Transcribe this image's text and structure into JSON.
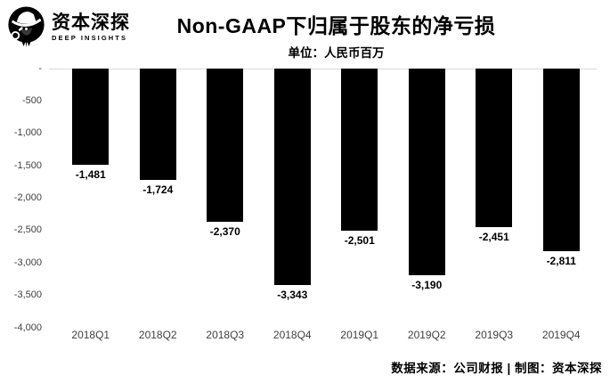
{
  "brand": {
    "name": "资本深探",
    "subname": "DEEP INSIGHTS"
  },
  "header": {
    "title": "Non-GAAP下归属于股东的净亏损",
    "subtitle": "单位：人民币百万"
  },
  "footer": {
    "credit": "数据来源：公司财报 | 制图：资本深探"
  },
  "colors": {
    "bar": "#000000",
    "axis_line": "#d9d9d9",
    "tick_text": "#3f3f3f",
    "label_text": "#000000",
    "background": "#ffffff"
  },
  "chart_data": {
    "type": "bar",
    "title": "Non-GAAP下归属于股东的净亏损",
    "subtitle": "单位：人民币百万",
    "categories": [
      "2018Q1",
      "2018Q2",
      "2018Q3",
      "2018Q4",
      "2019Q1",
      "2019Q2",
      "2019Q3",
      "2019Q4"
    ],
    "values": [
      -1481,
      -1724,
      -2370,
      -3343,
      -2501,
      -3190,
      -2451,
      -2811
    ],
    "value_labels": [
      "-1,481",
      "-1,724",
      "-2,370",
      "-3,343",
      "-2,501",
      "-3,190",
      "-2,451",
      "-2,811"
    ],
    "xlabel": "",
    "ylabel": "",
    "ylim": [
      -4000,
      0
    ],
    "grid": false,
    "legend": "none",
    "yticks": [
      {
        "label": "-",
        "value": 0
      },
      {
        "label": "-500",
        "value": -500
      },
      {
        "label": "-1,000",
        "value": -1000
      },
      {
        "label": "-1,500",
        "value": -1500
      },
      {
        "label": "-2,000",
        "value": -2000
      },
      {
        "label": "-2,500",
        "value": -2500
      },
      {
        "label": "-3,000",
        "value": -3000
      },
      {
        "label": "-3,500",
        "value": -3500
      },
      {
        "label": "-4,000",
        "value": -4000
      }
    ]
  }
}
